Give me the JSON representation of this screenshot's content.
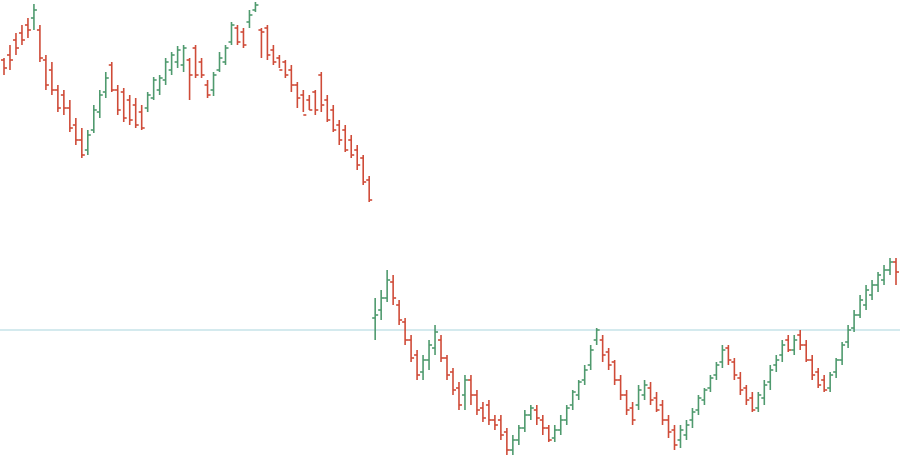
{
  "chart_data": {
    "type": "ohlc",
    "ylim": [
      0,
      473
    ],
    "grid": false,
    "reference_level": 330,
    "colors": {
      "up": "#4f9a6e",
      "down": "#cf4b38",
      "reference": "#a8d5dc"
    },
    "bars": [
      [
        60,
        68,
        58,
        75
      ],
      [
        55,
        60,
        45,
        70
      ],
      [
        40,
        48,
        33,
        55
      ],
      [
        33,
        40,
        25,
        45
      ],
      [
        25,
        30,
        18,
        38
      ],
      [
        18,
        10,
        4,
        30
      ],
      [
        30,
        58,
        25,
        62
      ],
      [
        60,
        85,
        55,
        90
      ],
      [
        70,
        90,
        62,
        95
      ],
      [
        90,
        108,
        85,
        112
      ],
      [
        95,
        108,
        90,
        115
      ],
      [
        108,
        128,
        100,
        132
      ],
      [
        125,
        140,
        118,
        145
      ],
      [
        140,
        155,
        128,
        158
      ],
      [
        150,
        135,
        130,
        155
      ],
      [
        130,
        110,
        105,
        133
      ],
      [
        112,
        95,
        90,
        118
      ],
      [
        92,
        78,
        72,
        98
      ],
      [
        65,
        90,
        62,
        92
      ],
      [
        90,
        110,
        85,
        115
      ],
      [
        92,
        118,
        88,
        122
      ],
      [
        100,
        120,
        95,
        125
      ],
      [
        105,
        125,
        98,
        128
      ],
      [
        112,
        128,
        105,
        130
      ],
      [
        108,
        95,
        92,
        112
      ],
      [
        98,
        80,
        77,
        100
      ],
      [
        90,
        78,
        75,
        95
      ],
      [
        80,
        62,
        58,
        85
      ],
      [
        70,
        55,
        52,
        75
      ],
      [
        62,
        50,
        46,
        68
      ],
      [
        65,
        48,
        45,
        72
      ],
      [
        60,
        75,
        58,
        100
      ],
      [
        48,
        75,
        45,
        78
      ],
      [
        62,
        75,
        58,
        78
      ],
      [
        85,
        95,
        80,
        98
      ],
      [
        90,
        75,
        72,
        96
      ],
      [
        70,
        58,
        52,
        72
      ],
      [
        62,
        48,
        45,
        65
      ],
      [
        42,
        25,
        22,
        45
      ],
      [
        28,
        42,
        25,
        45
      ],
      [
        32,
        45,
        28,
        48
      ],
      [
        22,
        15,
        10,
        28
      ],
      [
        10,
        5,
        2,
        12
      ],
      [
        30,
        32,
        28,
        58
      ],
      [
        28,
        55,
        25,
        60
      ],
      [
        50,
        62,
        45,
        65
      ],
      [
        58,
        70,
        55,
        68
      ],
      [
        62,
        75,
        60,
        78
      ],
      [
        70,
        85,
        65,
        92
      ],
      [
        85,
        98,
        82,
        108
      ],
      [
        95,
        115,
        90,
        112
      ],
      [
        100,
        110,
        95,
        110
      ],
      [
        92,
        110,
        90,
        115
      ],
      [
        75,
        105,
        72,
        112
      ],
      [
        100,
        120,
        95,
        122
      ],
      [
        110,
        130,
        105,
        132
      ],
      [
        125,
        140,
        120,
        145
      ],
      [
        130,
        150,
        125,
        152
      ],
      [
        140,
        155,
        135,
        158
      ],
      [
        150,
        165,
        145,
        170
      ],
      [
        158,
        182,
        155,
        185
      ],
      [
        180,
        200,
        176,
        202
      ],
      [
        318,
        315,
        298,
        340
      ],
      [
        310,
        298,
        290,
        320
      ],
      [
        298,
        280,
        270,
        302
      ],
      [
        282,
        298,
        275,
        305
      ],
      [
        305,
        320,
        300,
        325
      ],
      [
        322,
        340,
        318,
        345
      ],
      [
        340,
        358,
        335,
        362
      ],
      [
        355,
        375,
        350,
        380
      ],
      [
        372,
        360,
        355,
        380
      ],
      [
        360,
        345,
        340,
        370
      ],
      [
        348,
        332,
        325,
        355
      ],
      [
        340,
        358,
        335,
        362
      ],
      [
        358,
        375,
        355,
        380
      ],
      [
        372,
        390,
        368,
        395
      ],
      [
        388,
        405,
        382,
        410
      ],
      [
        395,
        380,
        375,
        410
      ],
      [
        380,
        395,
        375,
        405
      ],
      [
        395,
        410,
        390,
        415
      ],
      [
        408,
        418,
        402,
        422
      ],
      [
        405,
        420,
        400,
        425
      ],
      [
        420,
        425,
        415,
        430
      ],
      [
        420,
        435,
        415,
        440
      ],
      [
        432,
        450,
        428,
        455
      ],
      [
        450,
        440,
        435,
        455
      ],
      [
        440,
        428,
        425,
        445
      ],
      [
        428,
        415,
        410,
        432
      ],
      [
        415,
        408,
        405,
        420
      ],
      [
        410,
        418,
        405,
        425
      ],
      [
        420,
        428,
        415,
        435
      ],
      [
        428,
        440,
        425,
        442
      ],
      [
        438,
        430,
        425,
        442
      ],
      [
        430,
        420,
        415,
        435
      ],
      [
        420,
        408,
        405,
        425
      ],
      [
        405,
        392,
        390,
        410
      ],
      [
        395,
        382,
        380,
        400
      ],
      [
        380,
        370,
        365,
        385
      ],
      [
        365,
        350,
        345,
        370
      ],
      [
        340,
        330,
        328,
        345
      ],
      [
        340,
        355,
        335,
        362
      ],
      [
        352,
        365,
        348,
        370
      ],
      [
        362,
        380,
        360,
        385
      ],
      [
        380,
        395,
        375,
        400
      ],
      [
        395,
        410,
        390,
        415
      ],
      [
        408,
        420,
        402,
        425
      ],
      [
        405,
        390,
        385,
        410
      ],
      [
        395,
        385,
        380,
        400
      ],
      [
        388,
        400,
        382,
        405
      ],
      [
        398,
        410,
        392,
        412
      ],
      [
        405,
        420,
        400,
        425
      ],
      [
        420,
        432,
        415,
        438
      ],
      [
        430,
        445,
        425,
        450
      ],
      [
        440,
        430,
        425,
        448
      ],
      [
        435,
        425,
        420,
        440
      ],
      [
        420,
        412,
        408,
        428
      ],
      [
        410,
        398,
        395,
        415
      ],
      [
        400,
        390,
        388,
        405
      ],
      [
        388,
        378,
        375,
        392
      ],
      [
        375,
        365,
        362,
        380
      ],
      [
        362,
        350,
        345,
        368
      ],
      [
        348,
        360,
        345,
        365
      ],
      [
        362,
        375,
        358,
        380
      ],
      [
        378,
        390,
        372,
        395
      ],
      [
        388,
        400,
        385,
        405
      ],
      [
        398,
        410,
        392,
        412
      ],
      [
        408,
        395,
        392,
        412
      ],
      [
        398,
        385,
        380,
        405
      ],
      [
        382,
        370,
        365,
        390
      ],
      [
        365,
        360,
        355,
        372
      ],
      [
        355,
        345,
        340,
        362
      ],
      [
        340,
        350,
        335,
        352
      ],
      [
        350,
        340,
        335,
        355
      ],
      [
        335,
        345,
        330,
        350
      ],
      [
        345,
        360,
        340,
        362
      ],
      [
        360,
        375,
        355,
        380
      ],
      [
        372,
        385,
        368,
        388
      ],
      [
        380,
        390,
        375,
        392
      ],
      [
        388,
        375,
        372,
        392
      ],
      [
        372,
        360,
        358,
        378
      ],
      [
        360,
        345,
        342,
        365
      ],
      [
        342,
        330,
        325,
        348
      ],
      [
        328,
        315,
        310,
        332
      ],
      [
        315,
        300,
        295,
        318
      ],
      [
        305,
        290,
        285,
        310
      ],
      [
        295,
        285,
        280,
        300
      ],
      [
        285,
        275,
        272,
        292
      ],
      [
        280,
        270,
        265,
        285
      ],
      [
        270,
        262,
        258,
        275
      ],
      [
        262,
        272,
        258,
        285
      ]
    ]
  }
}
